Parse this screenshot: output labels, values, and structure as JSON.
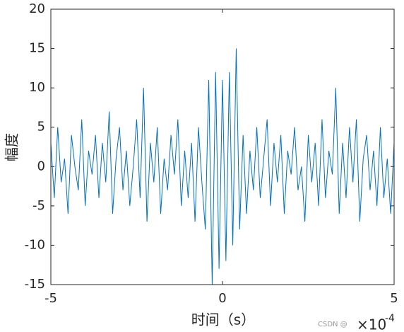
{
  "chart_data": {
    "type": "line",
    "x_label": "时间（s）",
    "y_label": "幅度",
    "x_exponent_base": "×10",
    "x_exponent": "-4",
    "watermark": "CSDN @",
    "xlim": [
      -5,
      5
    ],
    "xticks": [
      -5,
      0,
      5
    ],
    "ylim": [
      -15,
      20
    ],
    "yticks": [
      -15,
      -10,
      -5,
      0,
      5,
      10,
      15,
      20
    ],
    "grid": false,
    "x": [
      -5,
      -4.9,
      -4.8,
      -4.7,
      -4.6,
      -4.5,
      -4.4,
      -4.3,
      -4.2,
      -4.1,
      -4,
      -3.9,
      -3.8,
      -3.7,
      -3.6,
      -3.5,
      -3.4,
      -3.3,
      -3.2,
      -3.1,
      -3,
      -2.9,
      -2.8,
      -2.7,
      -2.6,
      -2.5,
      -2.4,
      -2.3,
      -2.2,
      -2.1,
      -2,
      -1.9,
      -1.8,
      -1.7,
      -1.6,
      -1.5,
      -1.4,
      -1.3,
      -1.2,
      -1.1,
      -1,
      -0.9,
      -0.8,
      -0.7,
      -0.6,
      -0.5,
      -0.4,
      -0.3,
      -0.2,
      -0.1,
      0,
      0.1,
      0.2,
      0.3,
      0.4,
      0.5,
      0.6,
      0.7,
      0.8,
      0.9,
      1,
      1.1,
      1.2,
      1.3,
      1.4,
      1.5,
      1.6,
      1.7,
      1.8,
      1.9,
      2,
      2.1,
      2.2,
      2.3,
      2.4,
      2.5,
      2.6,
      2.7,
      2.8,
      2.9,
      3,
      3.1,
      3.2,
      3.3,
      3.4,
      3.5,
      3.6,
      3.7,
      3.8,
      3.9,
      4,
      4.1,
      4.2,
      4.3,
      4.4,
      4.5,
      4.6,
      4.7,
      4.8,
      4.9,
      5
    ],
    "series": [
      {
        "color": "#0072bd",
        "values": [
          3,
          -4,
          5,
          -2,
          1,
          -6,
          4,
          0,
          -3,
          6,
          -5,
          2,
          -1,
          4,
          -4,
          3,
          -2,
          7,
          -6,
          1,
          5,
          -3,
          2,
          -5,
          0,
          6,
          -4,
          10,
          -7,
          3,
          -2,
          5,
          -6,
          1,
          -3,
          4,
          -1,
          6,
          -5,
          2,
          -4,
          3,
          -7,
          5,
          -2,
          -8,
          11,
          -15,
          12,
          -13,
          11,
          -12,
          12,
          -10,
          15,
          -8,
          4,
          -6,
          2,
          -3,
          5,
          -4,
          1,
          6,
          -5,
          3,
          -2,
          4,
          -6,
          2,
          -1,
          5,
          -3,
          0,
          -7,
          4,
          -2,
          3,
          -5,
          6,
          -4,
          2,
          -1,
          10,
          -6,
          3,
          -4,
          5,
          -2,
          6,
          -7,
          1,
          4,
          -3,
          2,
          -5,
          5,
          -4,
          1,
          -6,
          3
        ]
      }
    ]
  }
}
